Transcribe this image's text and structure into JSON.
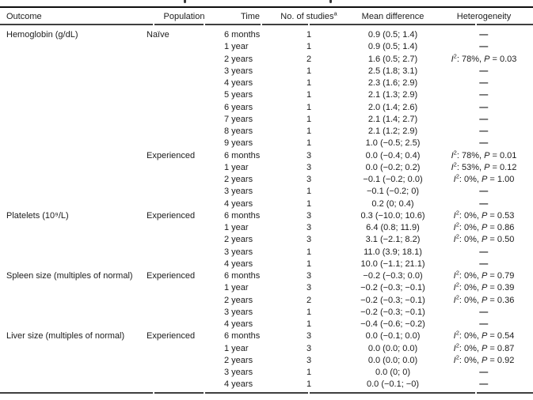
{
  "table": {
    "headers": [
      {
        "label": "Outcome"
      },
      {
        "label": "Population"
      },
      {
        "label": "Time"
      },
      {
        "label": "No. of studies",
        "sup": "a"
      },
      {
        "label": "Mean difference"
      },
      {
        "label": "Heterogeneity"
      }
    ],
    "dash": "—",
    "het_i_label": "I",
    "het_i_sup": "2",
    "het_p_label": "P",
    "groups": [
      {
        "outcome": "Hemoglobin (g/dL)",
        "population": "Naïve",
        "rows": [
          {
            "time": "6 months",
            "n": "1",
            "mean": "0.9 (0.5; 1.4)",
            "het": null
          },
          {
            "time": "1 year",
            "n": "1",
            "mean": "0.9 (0.5; 1.4)",
            "het": null
          },
          {
            "time": "2 years",
            "n": "2",
            "mean": "1.6 (0.5; 2.7)",
            "het": {
              "i2": "78%",
              "p": "0.03"
            }
          },
          {
            "time": "3 years",
            "n": "1",
            "mean": "2.5 (1.8; 3.1)",
            "het": null
          },
          {
            "time": "4 years",
            "n": "1",
            "mean": "2.3 (1.6; 2.9)",
            "het": null
          },
          {
            "time": "5 years",
            "n": "1",
            "mean": "2.1 (1.3; 2.9)",
            "het": null
          },
          {
            "time": "6 years",
            "n": "1",
            "mean": "2.0 (1.4; 2.6)",
            "het": null
          },
          {
            "time": "7 years",
            "n": "1",
            "mean": "2.1 (1.4; 2.7)",
            "het": null
          },
          {
            "time": "8 years",
            "n": "1",
            "mean": "2.1 (1.2; 2.9)",
            "het": null
          },
          {
            "time": "9 years",
            "n": "1",
            "mean": "1.0 (−0.5; 2.5)",
            "het": null
          }
        ]
      },
      {
        "outcome": "",
        "population": "Experienced",
        "rows": [
          {
            "time": "6 months",
            "n": "3",
            "mean": "0.0 (−0.4; 0.4)",
            "het": {
              "i2": "78%",
              "p": "0.01"
            }
          },
          {
            "time": "1 year",
            "n": "3",
            "mean": "0.0 (−0.2; 0.2)",
            "het": {
              "i2": "53%",
              "p": "0.12"
            }
          },
          {
            "time": "2 years",
            "n": "3",
            "mean": "−0.1 (−0.2; 0.0)",
            "het": {
              "i2": "0%",
              "p": "1.00"
            }
          },
          {
            "time": "3 years",
            "n": "1",
            "mean": "−0.1 (−0.2; 0)",
            "het": null
          },
          {
            "time": "4 years",
            "n": "1",
            "mean": "0.2 (0; 0.4)",
            "het": null
          }
        ]
      },
      {
        "outcome": "Platelets (10⁹/L)",
        "population": "Experienced",
        "rows": [
          {
            "time": "6 months",
            "n": "3",
            "mean": "0.3 (−10.0; 10.6)",
            "het": {
              "i2": "0%",
              "p": "0.53"
            }
          },
          {
            "time": "1 year",
            "n": "3",
            "mean": "6.4 (0.8; 11.9)",
            "het": {
              "i2": "0%",
              "p": "0.86"
            }
          },
          {
            "time": "2 years",
            "n": "3",
            "mean": "3.1 (−2.1; 8.2)",
            "het": {
              "i2": "0%",
              "p": "0.50"
            }
          },
          {
            "time": "3 years",
            "n": "1",
            "mean": "11.0 (3.9; 18.1)",
            "het": null
          },
          {
            "time": "4 years",
            "n": "1",
            "mean": "10.0 (−1.1; 21.1)",
            "het": null
          }
        ]
      },
      {
        "outcome": "Spleen size (multiples of normal)",
        "population": "Experienced",
        "rows": [
          {
            "time": "6 months",
            "n": "3",
            "mean": "−0.2 (−0.3; 0.0)",
            "het": {
              "i2": "0%",
              "p": "0.79"
            }
          },
          {
            "time": "1 year",
            "n": "3",
            "mean": "−0.2 (−0.3; −0.1)",
            "het": {
              "i2": "0%",
              "p": "0.39"
            }
          },
          {
            "time": "2 years",
            "n": "2",
            "mean": "−0.2 (−0.3; −0.1)",
            "het": {
              "i2": "0%",
              "p": "0.36"
            }
          },
          {
            "time": "3 years",
            "n": "1",
            "mean": "−0.2 (−0.3; −0.1)",
            "het": null
          },
          {
            "time": "4 years",
            "n": "1",
            "mean": "−0.4 (−0.6; −0.2)",
            "het": null
          }
        ]
      },
      {
        "outcome": "Liver size (multiples of normal)",
        "population": "Experienced",
        "rows": [
          {
            "time": "6 months",
            "n": "3",
            "mean": "0.0 (−0.1; 0.0)",
            "het": {
              "i2": "0%",
              "p": "0.54"
            }
          },
          {
            "time": "1 year",
            "n": "3",
            "mean": "0.0 (0.0; 0.0)",
            "het": {
              "i2": "0%",
              "p": "0.87"
            }
          },
          {
            "time": "2 years",
            "n": "3",
            "mean": "0.0 (0.0; 0.0)",
            "het": {
              "i2": "0%",
              "p": "0.92"
            }
          },
          {
            "time": "3 years",
            "n": "1",
            "mean": "0.0 (0; 0)",
            "het": null
          },
          {
            "time": "4 years",
            "n": "1",
            "mean": "0.0 (−0.1; −0)",
            "het": null
          }
        ]
      }
    ]
  }
}
